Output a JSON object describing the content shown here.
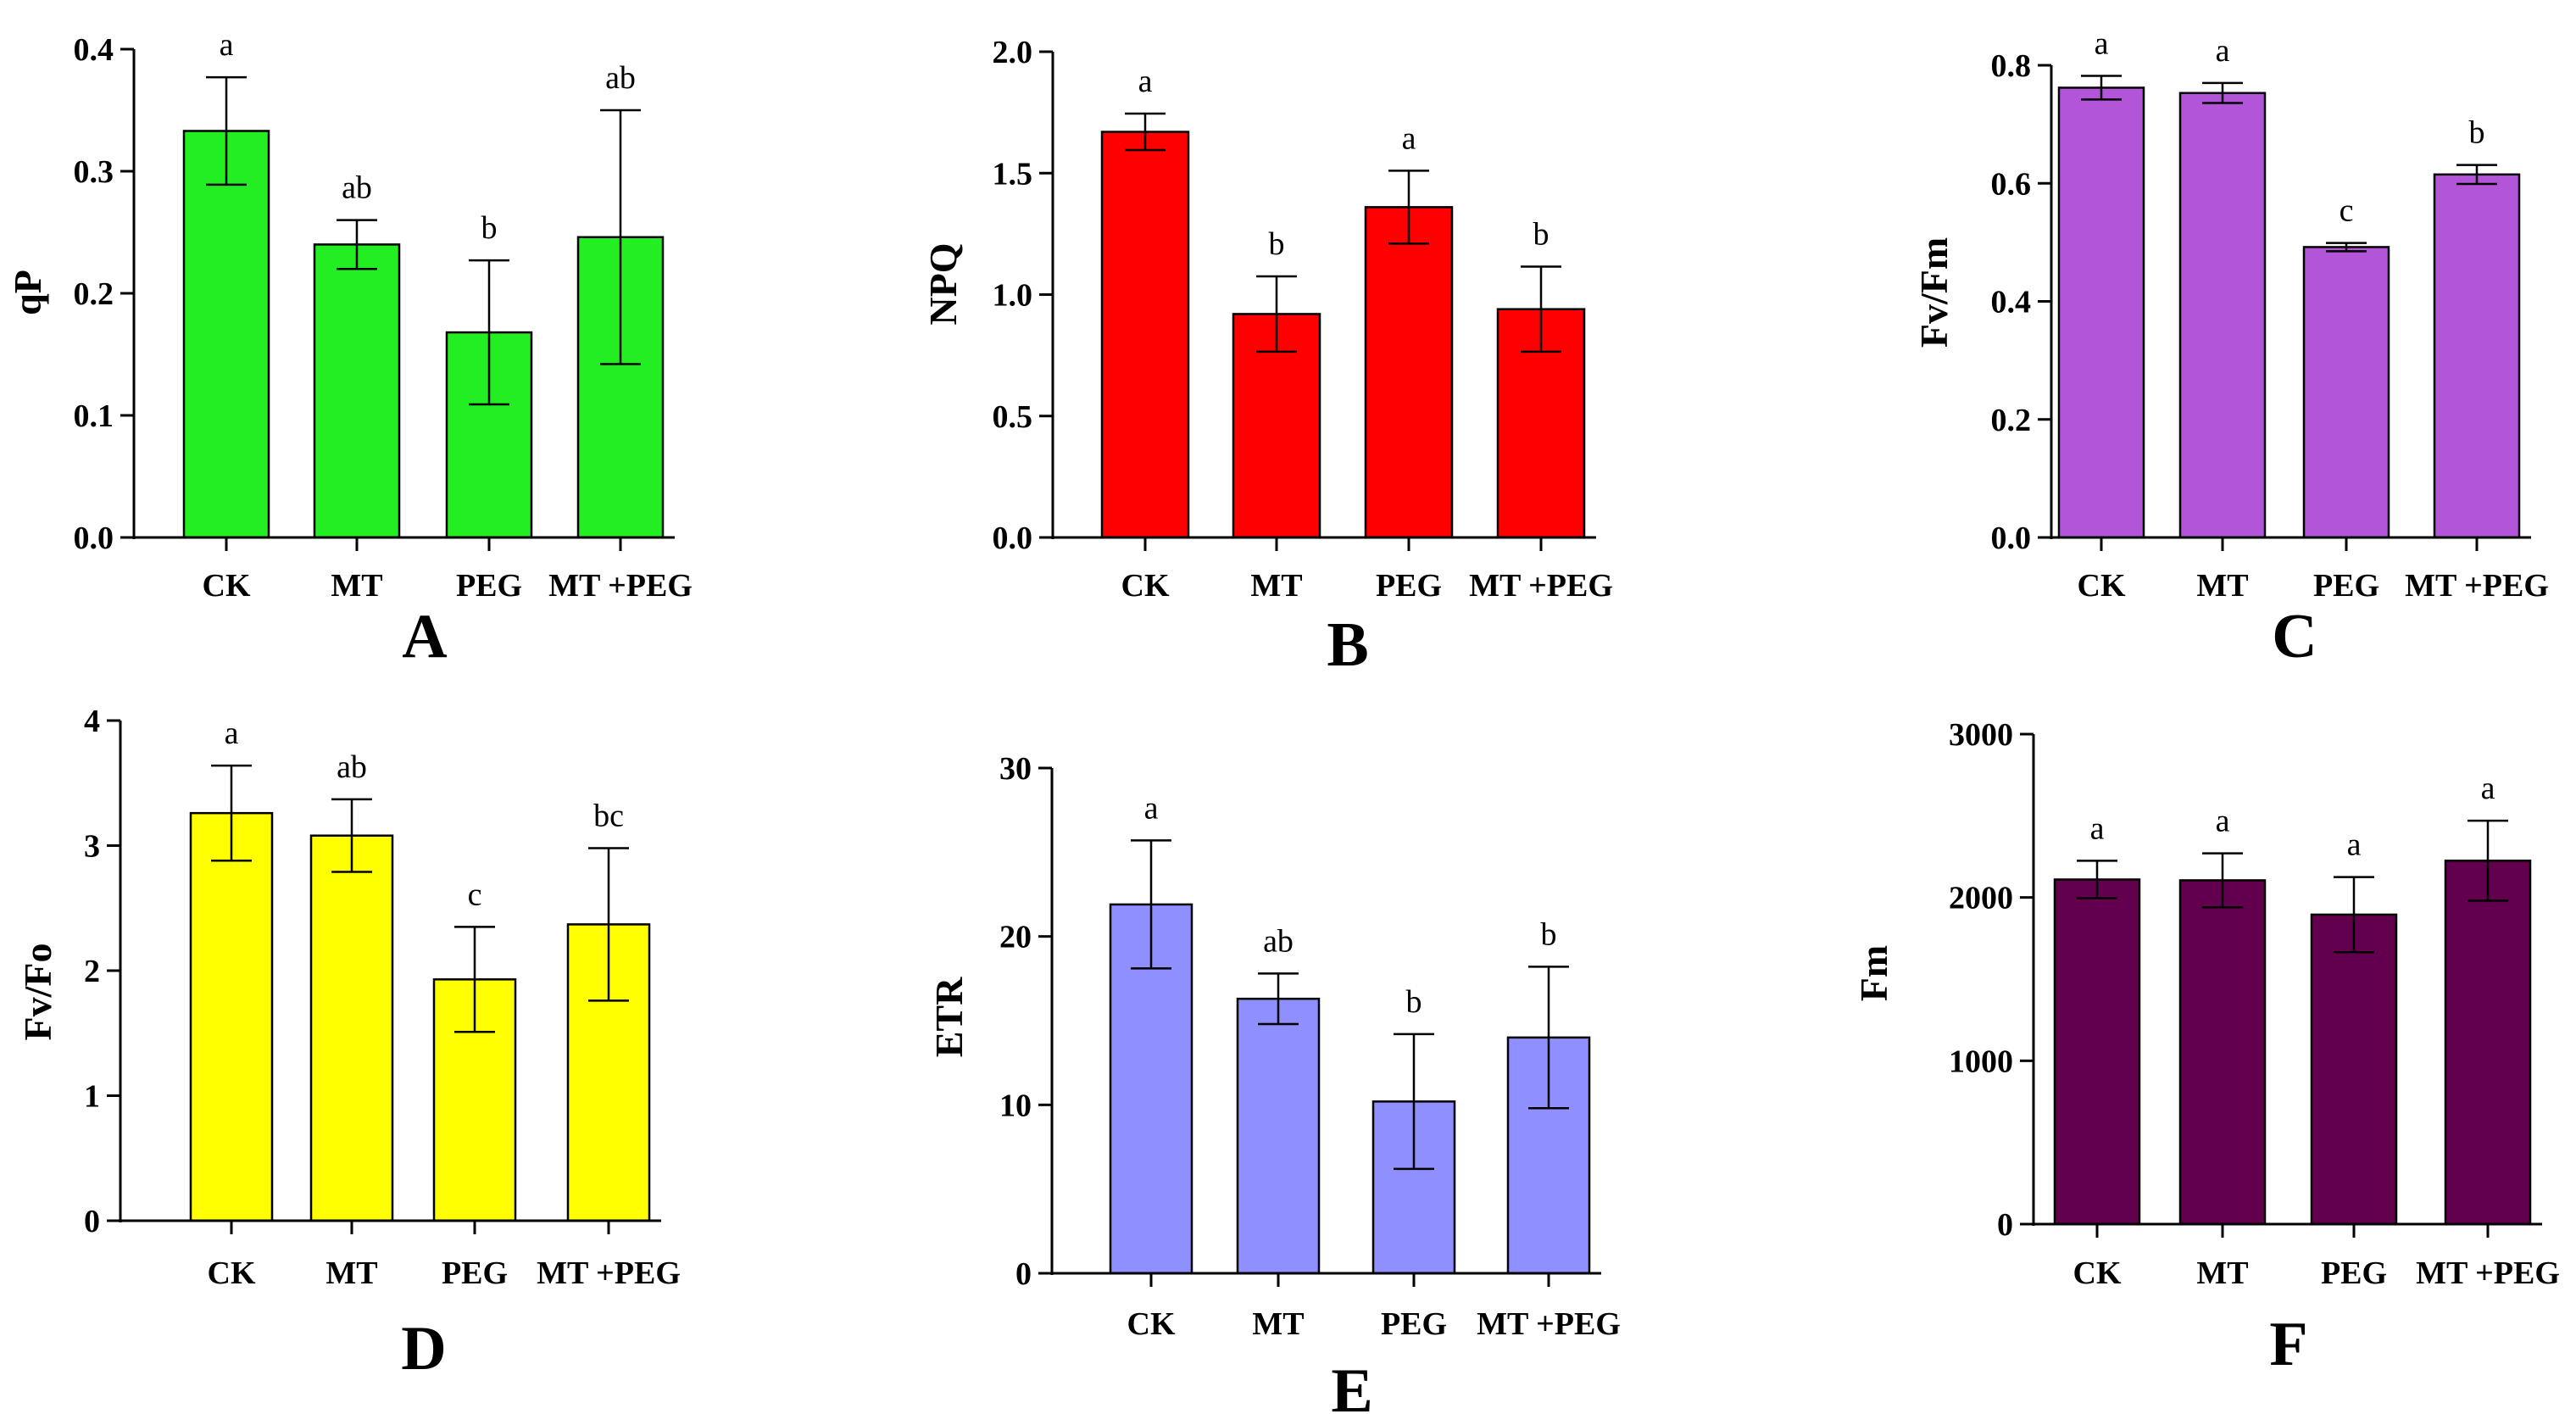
{
  "chart_data": [
    {
      "type": "bar",
      "panel": "A",
      "ylabel": "qP",
      "categories": [
        "CK",
        "MT",
        "PEG",
        "MT +PEG"
      ],
      "values": [
        0.333,
        0.24,
        0.168,
        0.246
      ],
      "errors": [
        0.044,
        0.02,
        0.059,
        0.104
      ],
      "letters": [
        "a",
        "ab",
        "b",
        "ab"
      ],
      "ylim": [
        0,
        0.4
      ],
      "yticks": [
        0.0,
        0.1,
        0.2,
        0.3,
        0.4
      ],
      "ytick_labels": [
        "0.0",
        "0.1",
        "0.2",
        "0.3",
        "0.4"
      ],
      "color": "#22ee22"
    },
    {
      "type": "bar",
      "panel": "B",
      "ylabel": "NPQ",
      "categories": [
        "CK",
        "MT",
        "PEG",
        "MT +PEG"
      ],
      "values": [
        1.67,
        0.92,
        1.36,
        0.94
      ],
      "errors": [
        0.075,
        0.155,
        0.15,
        0.175
      ],
      "letters": [
        "a",
        "b",
        "a",
        "b"
      ],
      "ylim": [
        0,
        2.0
      ],
      "yticks": [
        0.0,
        0.5,
        1.0,
        1.5,
        2.0
      ],
      "ytick_labels": [
        "0.0",
        "0.5",
        "1.0",
        "1.5",
        "2.0"
      ],
      "color": "#ff0000"
    },
    {
      "type": "bar",
      "panel": "C",
      "ylabel": "Fv/Fm",
      "categories": [
        "CK",
        "MT",
        "PEG",
        "MT +PEG"
      ],
      "values": [
        0.762,
        0.753,
        0.492,
        0.615
      ],
      "errors": [
        0.02,
        0.017,
        0.007,
        0.016
      ],
      "letters": [
        "a",
        "a",
        "c",
        "b"
      ],
      "ylim": [
        0,
        0.8
      ],
      "yticks": [
        0.0,
        0.2,
        0.4,
        0.6,
        0.8
      ],
      "ytick_labels": [
        "0.0",
        "0.2",
        "0.4",
        "0.6",
        "0.8"
      ],
      "color": "#b355d8"
    },
    {
      "type": "bar",
      "panel": "D",
      "ylabel": "Fv/Fo",
      "categories": [
        "CK",
        "MT",
        "PEG",
        "MT +PEG"
      ],
      "values": [
        3.26,
        3.08,
        1.93,
        2.37
      ],
      "errors": [
        0.38,
        0.29,
        0.42,
        0.61
      ],
      "letters": [
        "a",
        "ab",
        "c",
        "bc"
      ],
      "ylim": [
        0,
        4
      ],
      "yticks": [
        0,
        1,
        2,
        3,
        4
      ],
      "ytick_labels": [
        "0",
        "1",
        "2",
        "3",
        "4"
      ],
      "color": "#ffff00"
    },
    {
      "type": "bar",
      "panel": "E",
      "ylabel": "ETR",
      "categories": [
        "CK",
        "MT",
        "PEG",
        "MT +PEG"
      ],
      "values": [
        21.9,
        16.3,
        10.2,
        14.0
      ],
      "errors": [
        3.8,
        1.5,
        4.0,
        4.2
      ],
      "letters": [
        "a",
        "ab",
        "b",
        "b"
      ],
      "ylim": [
        0,
        30
      ],
      "yticks": [
        0,
        10,
        20,
        30
      ],
      "ytick_labels": [
        "0",
        "10",
        "20",
        "30"
      ],
      "color": "#8f8fff"
    },
    {
      "type": "bar",
      "panel": "F",
      "ylabel": "Fm",
      "categories": [
        "CK",
        "MT",
        "PEG",
        "MT +PEG"
      ],
      "values": [
        2110,
        2105,
        1895,
        2225
      ],
      "errors": [
        115,
        165,
        230,
        245
      ],
      "letters": [
        "a",
        "a",
        "a",
        "a"
      ],
      "ylim": [
        0,
        3000
      ],
      "yticks": [
        0,
        1000,
        2000,
        3000
      ],
      "ytick_labels": [
        "0",
        "1000",
        "2000",
        "3000"
      ],
      "color": "#62004d"
    }
  ]
}
